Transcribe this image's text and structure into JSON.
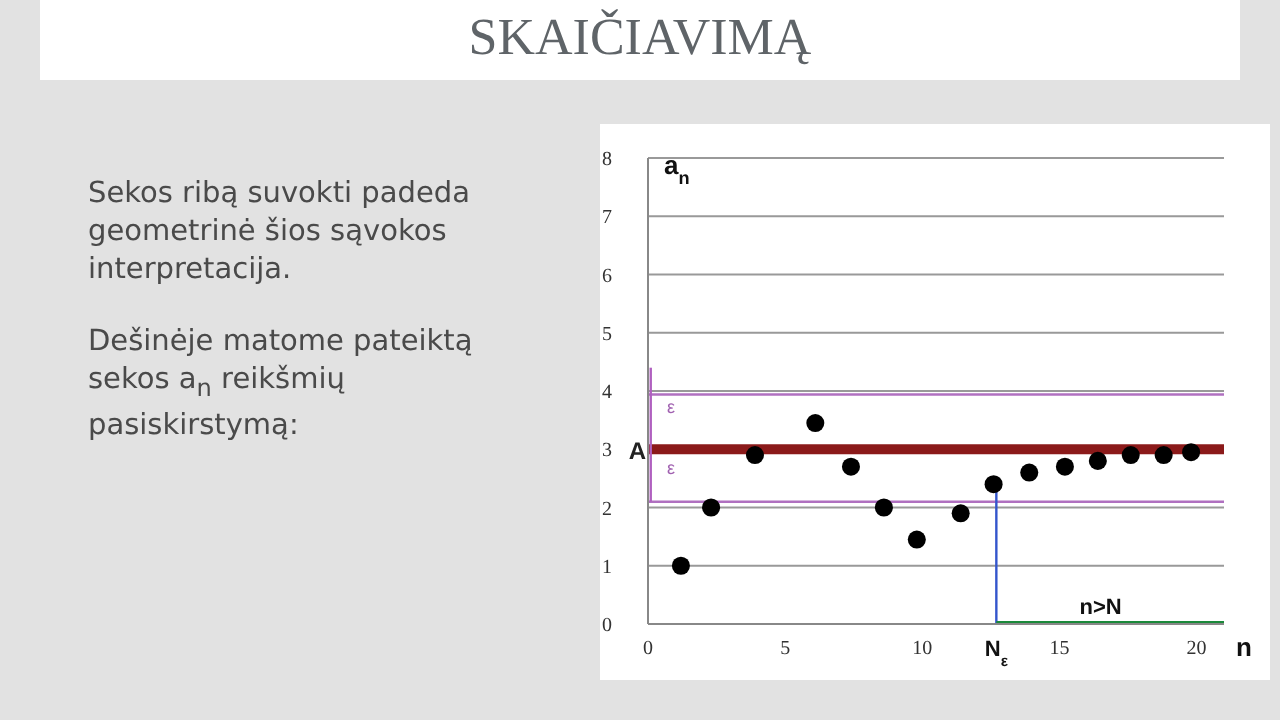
{
  "chart_data": {
    "type": "scatter",
    "title": "SKAIČIAVIMĄ",
    "xlabel": "n",
    "ylabel": "a$_{n}$",
    "annotations": [
      "Sekos ribą suvokti padeda geometrinė šios sąvokos interpretacija.",
      "Dešinėje matome pateiktą sekos a$_{n}$ reikšmių pasiskirstymą:",
      {
        "text": "ε",
        "x": 0.4,
        "y": 3.55
      },
      {
        "text": "ε",
        "x": 0.4,
        "y": 2.5
      },
      {
        "text": "N$_{ε}$",
        "x": 12.7,
        "y": 0
      },
      {
        "text": "n>N",
        "x": 16.5,
        "y": 0
      }
    ],
    "x": [
      1.2,
      2.3,
      3.9,
      6.1,
      7.4,
      8.6,
      9.8,
      11.4,
      12.6,
      13.9,
      15.2,
      16.4,
      17.6,
      18.8,
      19.8
    ],
    "series": [
      {
        "color": "#000000",
        "values": [
          1.0,
          2.0,
          2.9,
          3.45,
          2.7,
          2.0,
          1.45,
          1.9,
          2.4,
          2.6,
          2.7,
          2.8,
          2.9,
          2.9,
          2.95
        ]
      },
      {
        "type": "line",
        "marker": "none",
        "color": "#3355cc",
        "x": [
          12.7,
          12.7
        ],
        "values": [
          0,
          2.4
        ]
      },
      {
        "type": "line",
        "marker": "none",
        "color": "#1a8a3a",
        "x": [
          12.7,
          21
        ],
        "values": [
          0,
          0
        ]
      },
      {
        "type": "line",
        "marker": "none",
        "color": "#b060c0",
        "x": [
          0.1,
          0.1
        ],
        "values": [
          2.1,
          4.4
        ]
      }
    ],
    "ref_lines": [
      {
        "axis": "y",
        "value": 3,
        "label": "A",
        "color": "#8b1a1a"
      },
      {
        "axis": "y",
        "value": 3.94,
        "label": null,
        "color": "#b070c0"
      },
      {
        "axis": "y",
        "value": 2.1,
        "label": null,
        "color": "#b070c0"
      }
    ],
    "xlim": [
      0,
      21
    ],
    "xticks": [
      0,
      5,
      10,
      15,
      20
    ],
    "ylim": [
      0,
      8
    ],
    "yticks": [
      0,
      1,
      2,
      3,
      4,
      5,
      6,
      7,
      8
    ],
    "grid": "y",
    "legend": false,
    "marker": "circle"
  }
}
